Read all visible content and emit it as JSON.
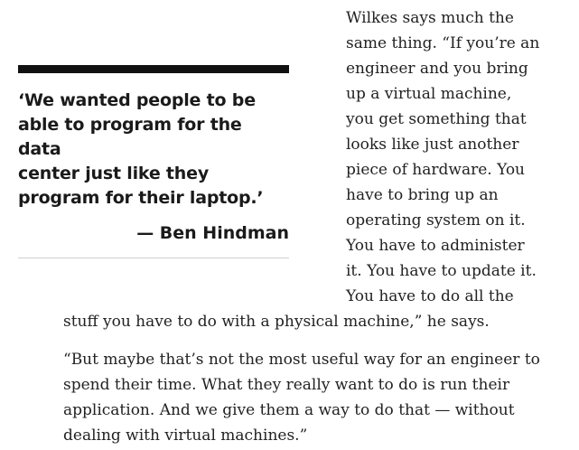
{
  "pullquote": {
    "lines": [
      "‘We wanted people to be",
      "able to program for the data",
      "center just like they",
      "program for their laptop.’"
    ],
    "attribution": "— Ben Hindman"
  },
  "paragraph1": {
    "column_lines": [
      "Wilkes says much the",
      "same thing. “If you’re an",
      "engineer and you bring",
      "up a virtual machine,",
      "you get something that",
      "looks like just another",
      "piece of hardware. You",
      "have to bring up an",
      "operating system on it.",
      "You have to administer",
      "it. You have to update it.",
      "You have to do all the"
    ],
    "wide_lines": [
      "stuff you have to do with a physical machine,” he says."
    ]
  },
  "paragraph2": {
    "lines": [
      "“But maybe that’s not the most useful way for an engineer to",
      "spend their time. What they really want to do is run their",
      "application. And we give them a way to do that — without",
      "dealing with virtual machines.”"
    ]
  }
}
